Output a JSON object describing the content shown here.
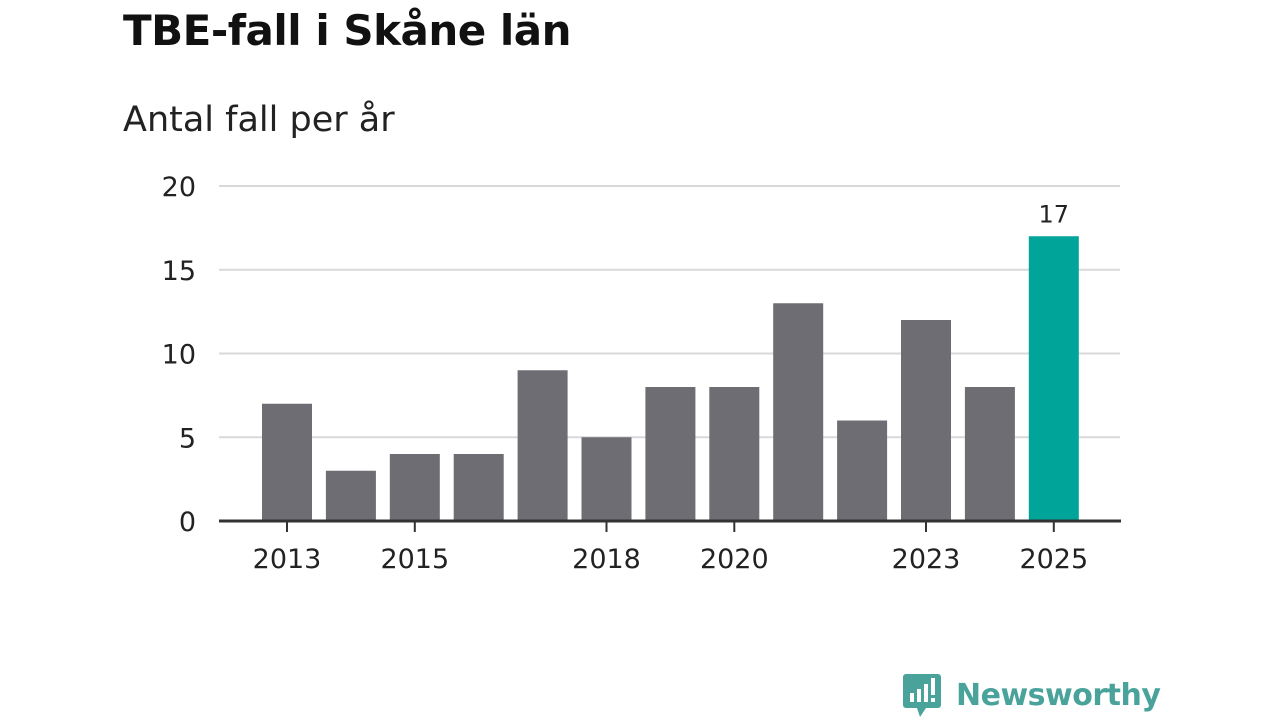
{
  "title": "TBE-fall i Skåne län",
  "subtitle": "Antal fall per år",
  "chart_data": {
    "type": "bar",
    "title": "TBE-fall i Skåne län",
    "subtitle": "Antal fall per år",
    "categories": [
      "2013",
      "2014",
      "2015",
      "2016",
      "2017",
      "2018",
      "2019",
      "2020",
      "2021",
      "2022",
      "2023",
      "2024",
      "2025"
    ],
    "values": [
      7,
      3,
      4,
      4,
      9,
      5,
      8,
      8,
      13,
      6,
      12,
      8,
      17
    ],
    "x_tick_labels": [
      "2013",
      "2015",
      "2018",
      "2020",
      "2023",
      "2025"
    ],
    "y_ticks": [
      0,
      5,
      10,
      15,
      20
    ],
    "ylim": [
      0,
      20
    ],
    "xlabel": "",
    "ylabel": "",
    "grid": true,
    "data_labels": [
      {
        "category": "2025",
        "text": "17"
      }
    ],
    "highlight_category": "2025",
    "colors": {
      "bar": "#6e6d73",
      "highlight": "#00a499",
      "grid": "#d9d9d9",
      "axis": "#333333",
      "text": "#222222"
    }
  },
  "brand": {
    "name": "Newsworthy",
    "icon": "newsworthy-logo-icon",
    "color": "#4aa39a"
  }
}
